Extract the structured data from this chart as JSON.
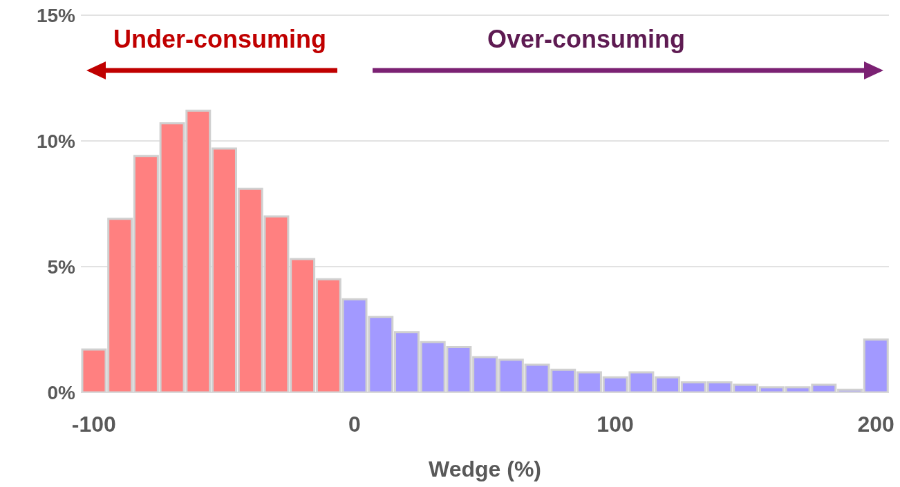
{
  "chart_data": {
    "type": "histogram",
    "xlabel": "Wedge (%)",
    "bins": [
      -105,
      -95,
      -85,
      -75,
      -65,
      -55,
      -45,
      -35,
      -25,
      -15,
      -5,
      5,
      15,
      25,
      35,
      45,
      55,
      65,
      75,
      85,
      95,
      105,
      115,
      125,
      135,
      145,
      155,
      165,
      175,
      185,
      195,
      205
    ],
    "values": [
      1.7,
      6.9,
      9.4,
      10.7,
      11.2,
      9.7,
      8.1,
      7.0,
      5.3,
      4.5,
      3.7,
      3.0,
      2.4,
      2.0,
      1.8,
      1.4,
      1.3,
      1.1,
      0.9,
      0.8,
      0.6,
      0.8,
      0.6,
      0.4,
      0.4,
      0.3,
      0.2,
      0.2,
      0.3,
      0.1,
      2.1
    ],
    "colors": [
      "#ff8080",
      "#ff8080",
      "#ff8080",
      "#ff8080",
      "#ff8080",
      "#ff8080",
      "#ff8080",
      "#ff8080",
      "#ff8080",
      "#ff8080",
      "#a299ff",
      "#a299ff",
      "#a299ff",
      "#a299ff",
      "#a299ff",
      "#a299ff",
      "#a299ff",
      "#a299ff",
      "#a299ff",
      "#a299ff",
      "#a299ff",
      "#a299ff",
      "#a299ff",
      "#a299ff",
      "#a299ff",
      "#a299ff",
      "#a299ff",
      "#a299ff",
      "#a299ff",
      "#a299ff",
      "#a299ff"
    ],
    "xlim": [
      -105,
      205
    ],
    "xticks": [
      -100,
      0,
      100,
      200
    ],
    "ylim": [
      0,
      15
    ],
    "yticks": [
      {
        "value": 0,
        "label": "0%"
      },
      {
        "value": 5,
        "label": "5%"
      },
      {
        "value": 10,
        "label": "10%"
      },
      {
        "value": 15,
        "label": "15%"
      }
    ],
    "grid": "y",
    "annotations": [
      "Under-consuming",
      "Over-consuming"
    ]
  }
}
